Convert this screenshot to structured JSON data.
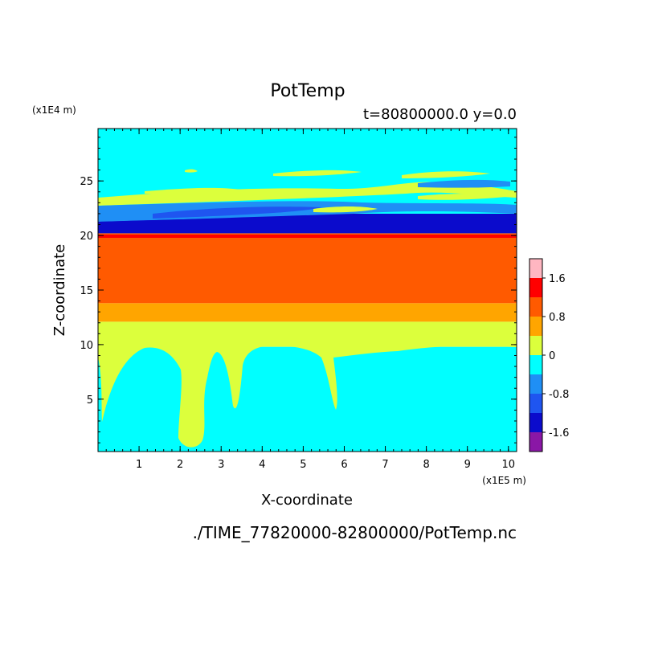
{
  "chart_data": {
    "type": "heatmap",
    "title": "PotTemp",
    "subtitle": "t=80800000.0 y=0.0",
    "xlabel": "X-coordinate",
    "ylabel": "Z-coordinate",
    "x_scale": "(x1E5 m)",
    "y_scale": "(x1E4 m)",
    "footer": "./TIME_77820000-82800000/PotTemp.nc",
    "xlim": [
      0,
      10.2
    ],
    "ylim": [
      0.2,
      29.8
    ],
    "x_ticks": [
      "1",
      "2",
      "3",
      "4",
      "5",
      "6",
      "7",
      "8",
      "9",
      "10"
    ],
    "y_ticks": [
      "5",
      "10",
      "15",
      "20",
      "25"
    ],
    "colorbar": {
      "levels": [
        -2.0,
        -1.6,
        -1.2,
        -0.8,
        -0.4,
        0,
        0.4,
        0.8,
        1.2,
        1.6,
        2.0
      ],
      "colors": [
        "#8a17a6",
        "#0b0bcc",
        "#1f55f0",
        "#1f8ff5",
        "#00ffff",
        "#dcff3c",
        "#ffa500",
        "#ff5a00",
        "#ff0000",
        "#ffb6c1"
      ],
      "labels": [
        "1.6",
        "0.8",
        "0",
        "-0.8",
        "-1.6"
      ],
      "label_values": [
        1.6,
        0.8,
        0,
        -0.8,
        -1.6
      ]
    },
    "layers": [
      {
        "z": [
          0.2,
          9.8
        ],
        "value": -0.2,
        "note": "cold background with warm plumes"
      },
      {
        "z": [
          9.8,
          12.1
        ],
        "value": 0.2
      },
      {
        "z": [
          12.1,
          13.8
        ],
        "value": 0.6
      },
      {
        "z": [
          13.8,
          20.2
        ],
        "value": 1.0
      },
      {
        "z": [
          20.2,
          22.0
        ],
        "value": -1.4
      },
      {
        "z": [
          22.0,
          29.8
        ],
        "value": -0.2,
        "note": "banded upper layer"
      }
    ]
  },
  "colors": {
    "background": "#00ffff",
    "frame": "#000000"
  }
}
